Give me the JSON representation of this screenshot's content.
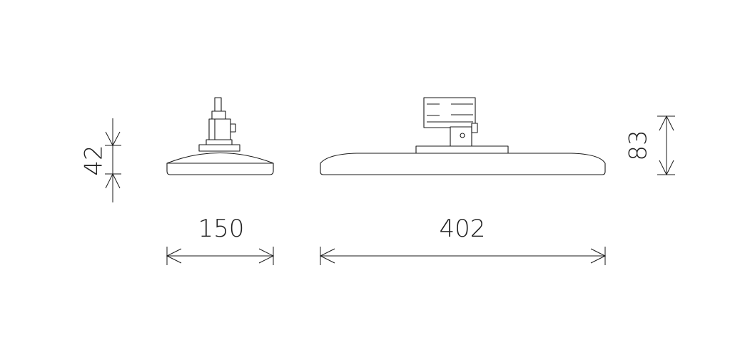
{
  "dimensions": {
    "side_height": "42",
    "side_width": "150",
    "front_width": "402",
    "front_height": "83"
  }
}
